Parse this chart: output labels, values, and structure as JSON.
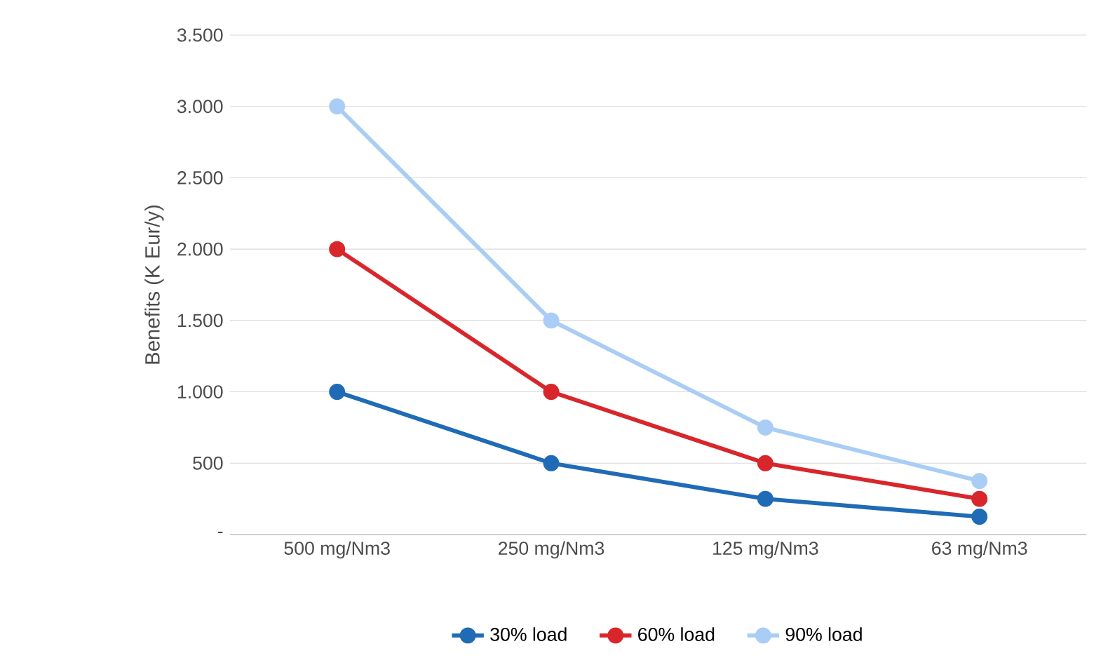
{
  "chart_data": {
    "type": "line",
    "ylabel": "Benefits (K Eur/y)",
    "categories": [
      "500 mg/Nm3",
      "250 mg/Nm3",
      "125 mg/Nm3",
      "63 mg/Nm3"
    ],
    "series": [
      {
        "name": "30% load",
        "color": "#1f6bb5",
        "values": [
          1000,
          500,
          250,
          125
        ]
      },
      {
        "name": "60% load",
        "color": "#d9262b",
        "values": [
          2000,
          1000,
          500,
          250
        ]
      },
      {
        "name": "90% load",
        "color": "#a9cdf5",
        "values": [
          3000,
          1500,
          750,
          375
        ]
      }
    ],
    "ylim": [
      0,
      3500
    ],
    "yticks": [
      {
        "value": 0,
        "label": "-"
      },
      500,
      {
        "value": 1000,
        "label": "1.000"
      },
      {
        "value": 1500,
        "label": "1.500"
      },
      {
        "value": 2000,
        "label": "2.000"
      },
      {
        "value": 2500,
        "label": "2.500"
      },
      {
        "value": 3000,
        "label": "3.000"
      },
      {
        "value": 3500,
        "label": "3.500"
      }
    ],
    "grid": "y",
    "legend": "bottom",
    "marker": "circle",
    "line_style": "solid"
  }
}
